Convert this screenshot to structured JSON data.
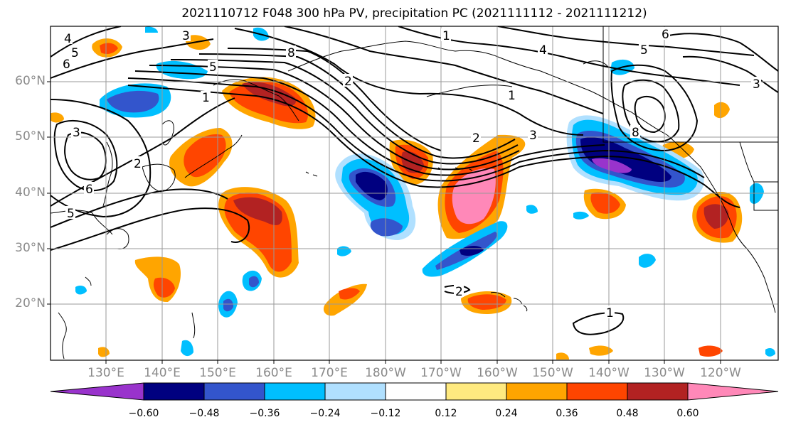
{
  "title": "2021110712 F048 300 hPa PV, precipitation PC (2021111112 - 2021111212)",
  "lat_labels": [
    "60°N",
    "50°N",
    "40°N",
    "30°N",
    "20°N"
  ],
  "lon_labels": [
    "130°E",
    "140°E",
    "150°E",
    "160°E",
    "170°E",
    "180°W",
    "170°W",
    "160°W",
    "150°W",
    "140°W",
    "130°W",
    "120°W"
  ],
  "colorbar": {
    "ticks": [
      "−0.60",
      "−0.48",
      "−0.36",
      "−0.24",
      "−0.12",
      "0.12",
      "0.24",
      "0.36",
      "0.48",
      "0.60"
    ],
    "colors": [
      "#9933cc",
      "#000080",
      "#3355cc",
      "#00bfff",
      "#b0e0ff",
      "#ffffff",
      "#ffea80",
      "#ffa500",
      "#ff4500",
      "#b22222",
      "#ff88b8"
    ]
  },
  "contour_labels": [
    "1",
    "2",
    "3",
    "4",
    "5",
    "6",
    "8"
  ],
  "colors": {
    "contour": "#000000",
    "grid": "#999999",
    "coast": "#000000",
    "axis_text": "#8a8a8a"
  }
}
